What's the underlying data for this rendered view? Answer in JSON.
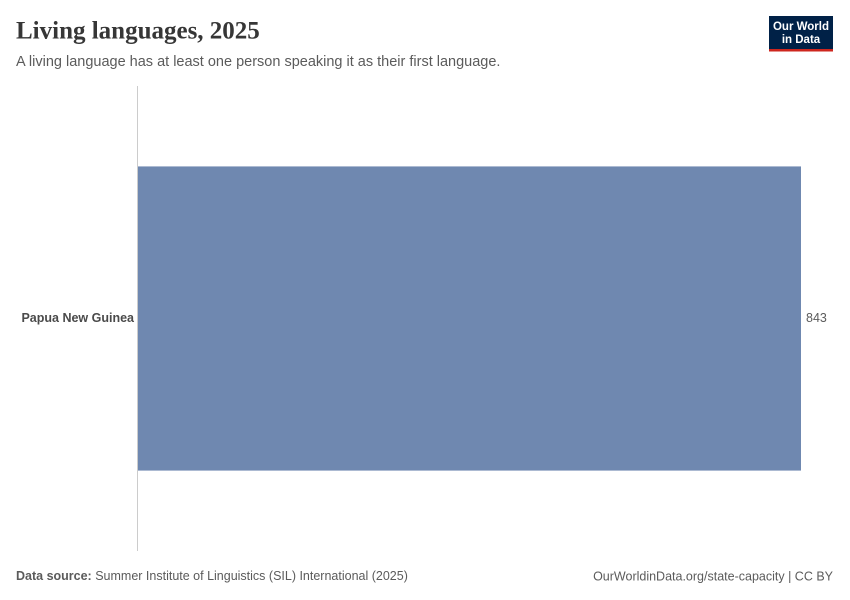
{
  "chart_data": {
    "type": "bar",
    "orientation": "horizontal",
    "title": "Living languages, 2025",
    "subtitle": "A living language has at least one person speaking it as their first language.",
    "categories": [
      "Papua New Guinea"
    ],
    "values": [
      843
    ],
    "color": "#6f88b0",
    "source_label": "Data source:",
    "source": "Summer Institute of Linguistics (SIL) International (2025)",
    "footer_right": "OurWorldinData.org/state-capacity | CC BY",
    "logo": [
      "Our World",
      "in Data"
    ]
  }
}
